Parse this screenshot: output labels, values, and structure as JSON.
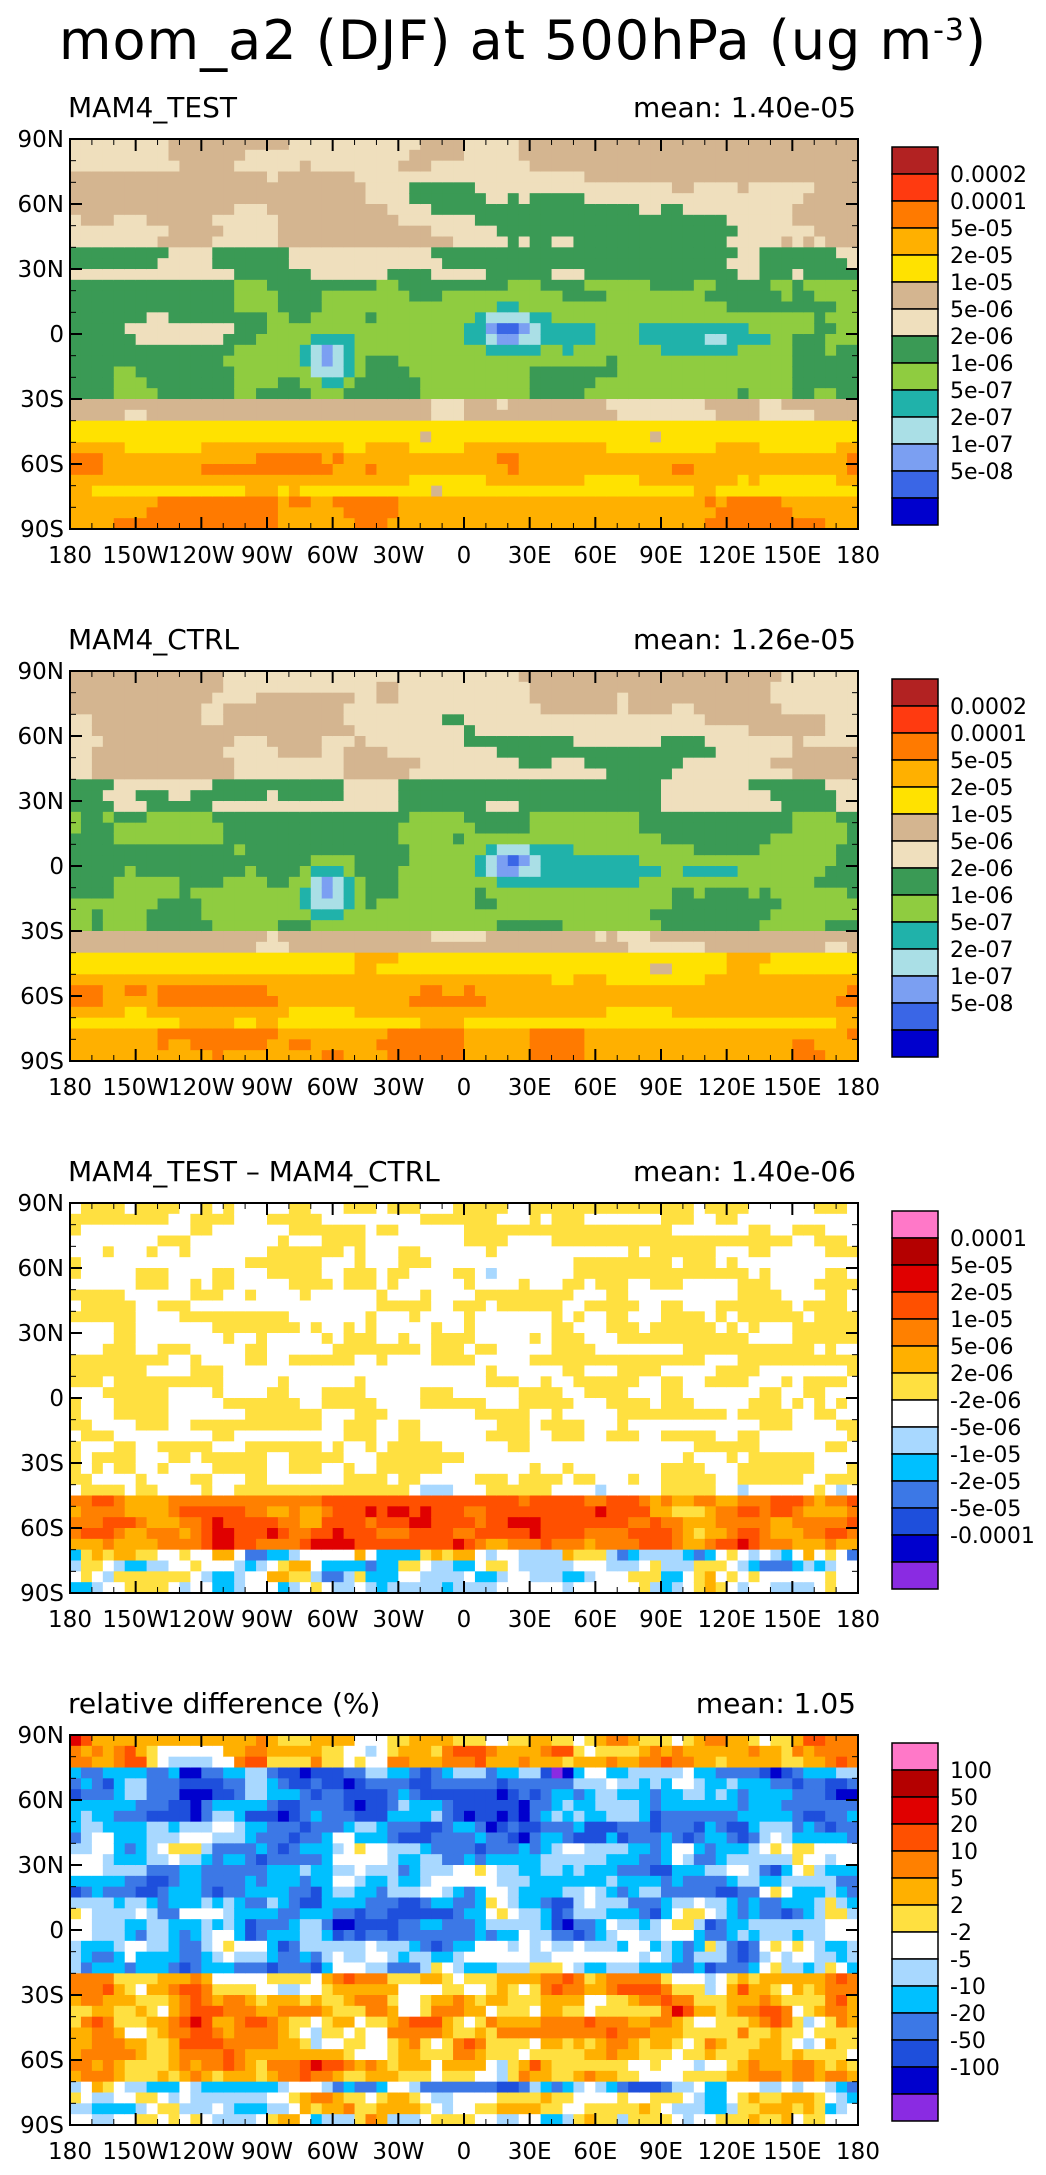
{
  "title": {
    "main": "mom_a2 (DJF) at 500hPa (ug m",
    "units_exp": "-3",
    "close": ")"
  },
  "axes": {
    "lat_labels": [
      "90N",
      "60N",
      "30N",
      "0",
      "30S",
      "60S",
      "90S"
    ],
    "lon_labels": [
      "180",
      "150W",
      "120W",
      "90W",
      "60W",
      "30W",
      "0",
      "30E",
      "60E",
      "90E",
      "120E",
      "150E",
      "180"
    ]
  },
  "colors": {
    "conc": [
      "#0000cd",
      "#3a66e6",
      "#7b9ff2",
      "#aadfe6",
      "#20b2aa",
      "#8fcc40",
      "#3a9a55",
      "#efdfbd",
      "#d4b590",
      "#ffe200",
      "#ffb000",
      "#ff7a00",
      "#ff3a10",
      "#b22222"
    ],
    "diff": [
      "#8a2be2",
      "#0000cd",
      "#1e4fdc",
      "#3c78e6",
      "#00c0ff",
      "#a8d8ff",
      "#ffffff",
      "#ffe040",
      "#ffb000",
      "#ff8000",
      "#ff5000",
      "#e00000",
      "#b40000",
      "#ff78c8"
    ]
  },
  "chart_data": [
    {
      "type": "heatmap",
      "name": "MAM4_TEST",
      "title": "MAM4_TEST",
      "mean_label": "mean:  1.40e-05",
      "variant": "conc",
      "levels": [
        "5e-08",
        "1e-07",
        "2e-07",
        "5e-07",
        "1e-06",
        "2e-06",
        "5e-06",
        "1e-05",
        "2e-05",
        "5e-05",
        "0.0001",
        "0.0002"
      ],
      "xlim": [
        -180,
        180
      ],
      "ylim": [
        -90,
        90
      ]
    },
    {
      "type": "heatmap",
      "name": "MAM4_CTRL",
      "title": "MAM4_CTRL",
      "mean_label": "mean:  1.26e-05",
      "variant": "conc",
      "levels": [
        "5e-08",
        "1e-07",
        "2e-07",
        "5e-07",
        "1e-06",
        "2e-06",
        "5e-06",
        "1e-05",
        "2e-05",
        "5e-05",
        "0.0001",
        "0.0002"
      ],
      "xlim": [
        -180,
        180
      ],
      "ylim": [
        -90,
        90
      ]
    },
    {
      "type": "heatmap",
      "name": "difference",
      "title": "MAM4_TEST – MAM4_CTRL",
      "mean_label": "mean:  1.40e-06",
      "variant": "diff",
      "levels": [
        "-0.0001",
        "-5e-05",
        "-2e-05",
        "-1e-05",
        "-5e-06",
        "-2e-06",
        "2e-06",
        "5e-06",
        "1e-05",
        "2e-05",
        "5e-05",
        "0.0001"
      ],
      "xlim": [
        -180,
        180
      ],
      "ylim": [
        -90,
        90
      ]
    },
    {
      "type": "heatmap",
      "name": "relative-difference",
      "title": "relative difference (%)",
      "mean_label": "mean:   1.05",
      "variant": "rel",
      "levels": [
        "-100",
        "-50",
        "-20",
        "-10",
        "-5",
        "-2",
        "2",
        "5",
        "10",
        "20",
        "50",
        "100"
      ],
      "xlim": [
        -180,
        180
      ],
      "ylim": [
        -90,
        90
      ]
    }
  ]
}
